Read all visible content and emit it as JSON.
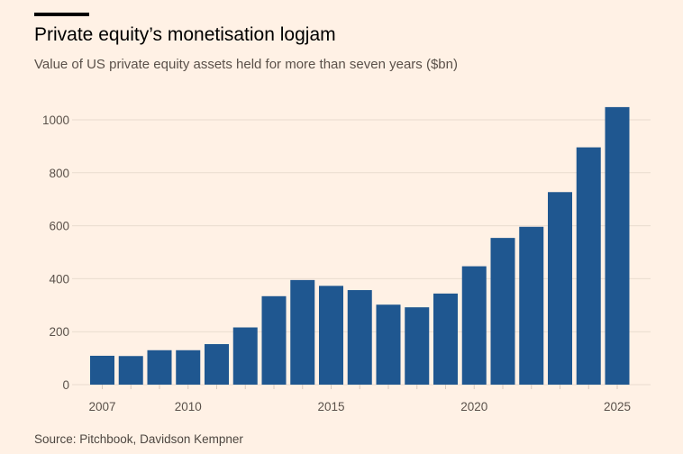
{
  "chart_data": {
    "type": "bar",
    "title": "Private equity’s monetisation logjam",
    "subtitle": "Value of US private equity assets held for more than seven years ($bn)",
    "source": "Source: Pitchbook, Davidson Kempner",
    "categories": [
      2007,
      2008,
      2009,
      2010,
      2011,
      2012,
      2013,
      2014,
      2015,
      2016,
      2017,
      2018,
      2019,
      2020,
      2021,
      2022,
      2023,
      2024,
      2025
    ],
    "values": [
      109,
      108,
      130,
      130,
      153,
      216,
      334,
      395,
      373,
      357,
      302,
      292,
      344,
      447,
      554,
      596,
      727,
      896,
      1048
    ],
    "x_tick_labels": [
      "2007",
      "2010",
      "2015",
      "2020",
      "2025"
    ],
    "y_ticks": [
      0,
      200,
      400,
      600,
      800,
      1000
    ],
    "ylim": [
      0,
      1060
    ],
    "grid": true,
    "bar_color": "#1f5790",
    "grid_color": "#e9dccf"
  }
}
